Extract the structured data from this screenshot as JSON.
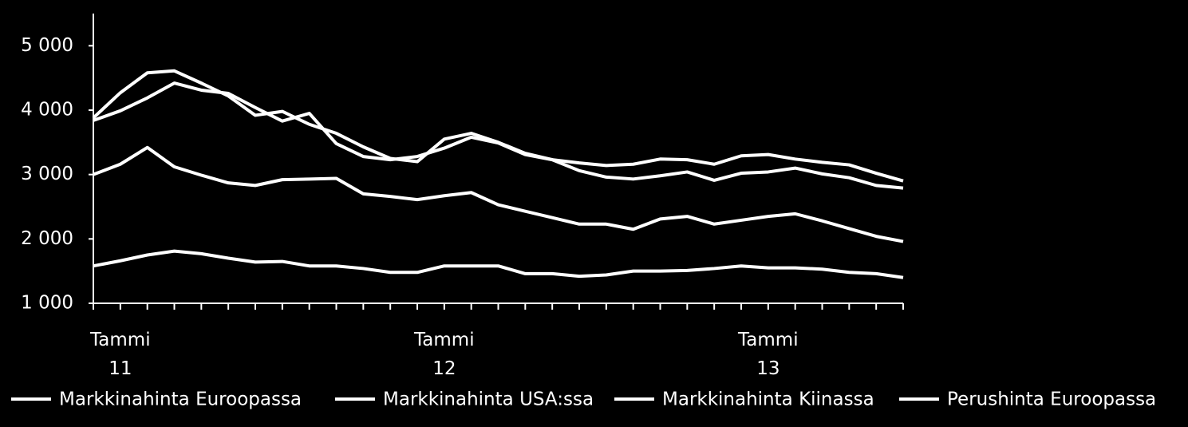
{
  "chart_data": {
    "type": "line",
    "categories": [
      null,
      "Tammi\n11",
      null,
      null,
      null,
      null,
      null,
      null,
      null,
      null,
      null,
      null,
      null,
      "Tammi\n12",
      null,
      null,
      null,
      null,
      null,
      null,
      null,
      null,
      null,
      null,
      null,
      "Tammi\n13",
      null,
      null,
      null,
      null,
      null
    ],
    "series": [
      {
        "name": "Markkinahinta Euroopassa",
        "color": "#ffffff",
        "values": [
          3880,
          4270,
          4580,
          4610,
          4420,
          4220,
          3920,
          3980,
          3780,
          3640,
          3430,
          3250,
          3200,
          3550,
          3640,
          3500,
          3330,
          3230,
          3180,
          3140,
          3160,
          3240,
          3230,
          3160,
          3290,
          3310,
          3240,
          3190,
          3150,
          3020,
          2900
        ]
      },
      {
        "name": "Markkinahinta USA:ssa",
        "color": "#ffffff",
        "values": [
          3840,
          3990,
          4190,
          4420,
          4310,
          4260,
          4040,
          3830,
          3950,
          3480,
          3280,
          3230,
          3280,
          3410,
          3580,
          3490,
          3310,
          3230,
          3060,
          2960,
          2930,
          2980,
          3040,
          2910,
          3020,
          3040,
          3100,
          3010,
          2950,
          2830,
          2790
        ]
      },
      {
        "name": "Markkinahinta Kiinassa",
        "color": "#ffffff",
        "values": [
          3000,
          3160,
          3420,
          3120,
          2990,
          2870,
          2830,
          2920,
          2930,
          2940,
          2700,
          2660,
          2610,
          2670,
          2720,
          2530,
          2430,
          2330,
          2230,
          2230,
          2150,
          2310,
          2350,
          2230,
          2290,
          2350,
          2390,
          2280,
          2160,
          2040,
          1960
        ]
      },
      {
        "name": "Perushinta Euroopassa",
        "color": "#ffffff",
        "values": [
          1580,
          1660,
          1750,
          1810,
          1770,
          1700,
          1640,
          1650,
          1580,
          1580,
          1540,
          1480,
          1480,
          1580,
          1580,
          1580,
          1460,
          1460,
          1420,
          1440,
          1500,
          1500,
          1510,
          1540,
          1580,
          1550,
          1550,
          1530,
          1480,
          1460,
          1400
        ]
      }
    ],
    "ylim": [
      1000,
      5500
    ],
    "yticks": [
      {
        "value": 1000,
        "label": "1 000"
      },
      {
        "value": 2000,
        "label": "2 000"
      },
      {
        "value": 3000,
        "label": "3 000"
      },
      {
        "value": 4000,
        "label": "4 000"
      },
      {
        "value": 5000,
        "label": "5 000"
      }
    ],
    "legend": "bottom"
  }
}
